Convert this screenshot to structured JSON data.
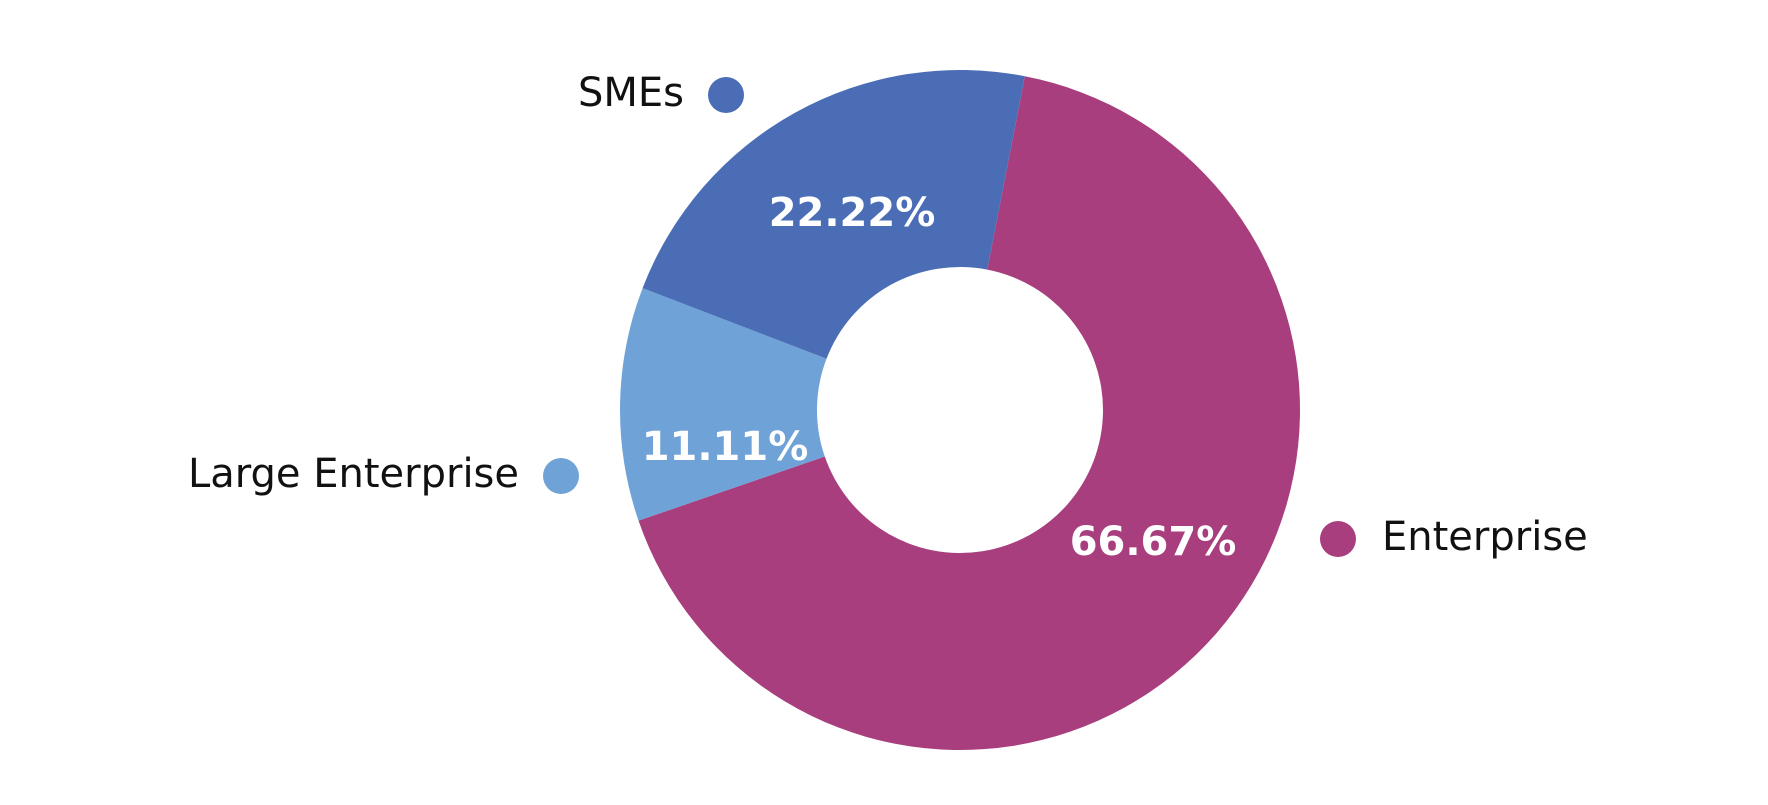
{
  "chart_data": {
    "type": "donut",
    "categories": [
      "Enterprise",
      "Large Enterprise",
      "SMEs"
    ],
    "values": [
      66.67,
      11.11,
      22.22
    ],
    "value_labels": [
      "66.67%",
      "11.11%",
      "22.22%"
    ],
    "colors": [
      "#a83e7e",
      "#6fa3d8",
      "#4a6db5"
    ]
  }
}
